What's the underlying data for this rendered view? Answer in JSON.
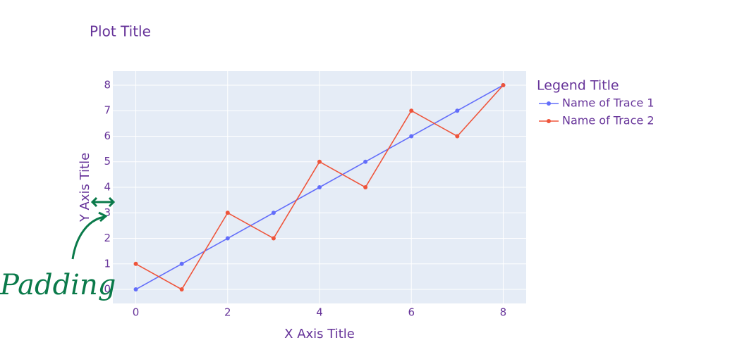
{
  "chart_data": {
    "type": "line",
    "title": "Plot Title",
    "xlabel": "X Axis Title",
    "ylabel": "Y Axis Title",
    "legend_title": "Legend Title",
    "annotation": "Padding",
    "x": [
      0,
      1,
      2,
      3,
      4,
      5,
      6,
      7,
      8
    ],
    "series": [
      {
        "name": "Name of Trace 1",
        "color": "#636efa",
        "values": [
          0,
          1,
          2,
          3,
          4,
          5,
          6,
          7,
          8
        ]
      },
      {
        "name": "Name of Trace 2",
        "color": "#ef553b",
        "values": [
          1,
          0,
          3,
          2,
          5,
          4,
          7,
          6,
          8
        ]
      }
    ],
    "xlim": [
      -0.5,
      8.5
    ],
    "xticks": [
      0,
      2,
      4,
      6,
      8
    ],
    "ylim": [
      -0.55,
      8.55
    ],
    "yticks": [
      0,
      1,
      2,
      3,
      4,
      5,
      6,
      7,
      8
    ],
    "grid": true,
    "legend": "right"
  }
}
